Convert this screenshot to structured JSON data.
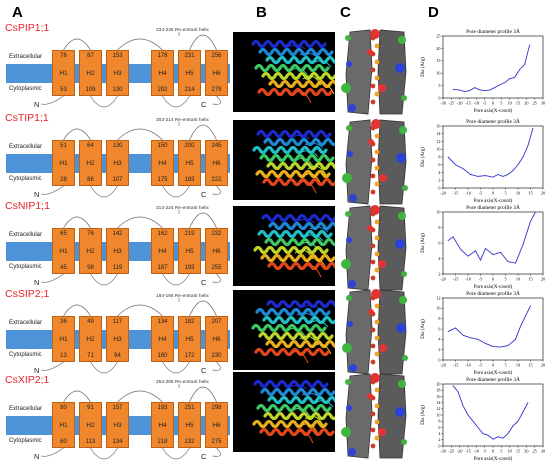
{
  "panels": {
    "a": "A",
    "b": "B",
    "c": "C",
    "d": "D"
  },
  "topology": {
    "extracellular_label": "Extracellular",
    "cytoplasmic_label": "Cytoplasmic",
    "n_label": "N",
    "c_label": "C",
    "colors": {
      "membrane": "#4c93d8",
      "helix": "#f0872d",
      "protein_name": "#e8232a"
    },
    "proteins": [
      {
        "name": "CsPIP1;1",
        "reentrant": "234-245 Re-entrant helix",
        "helices": [
          {
            "label": "H1",
            "top": "76",
            "bottom": "53"
          },
          {
            "label": "H2",
            "top": "87",
            "bottom": "109"
          },
          {
            "label": "H3",
            "top": "153",
            "bottom": "130"
          },
          {
            "label": "H4",
            "top": "178",
            "bottom": "202"
          },
          {
            "label": "H5",
            "top": "231",
            "bottom": "214"
          },
          {
            "label": "H6",
            "top": "256",
            "bottom": "279"
          }
        ]
      },
      {
        "name": "CsTIP1;1",
        "reentrant": "203-214 Re-entrant helix",
        "helices": [
          {
            "label": "H1",
            "top": "51",
            "bottom": "28"
          },
          {
            "label": "H2",
            "top": "64",
            "bottom": "86"
          },
          {
            "label": "H3",
            "top": "130",
            "bottom": "107"
          },
          {
            "label": "H4",
            "top": "150",
            "bottom": "175"
          },
          {
            "label": "H5",
            "top": "200",
            "bottom": "183"
          },
          {
            "label": "H6",
            "top": "245",
            "bottom": "222"
          }
        ]
      },
      {
        "name": "CsNIP1;1",
        "reentrant": "213-224 Re-entrant helix",
        "helices": [
          {
            "label": "H1",
            "top": "65",
            "bottom": "45"
          },
          {
            "label": "H2",
            "top": "76",
            "bottom": "98"
          },
          {
            "label": "H3",
            "top": "142",
            "bottom": "119"
          },
          {
            "label": "H4",
            "top": "162",
            "bottom": "187"
          },
          {
            "label": "H5",
            "top": "219",
            "bottom": "193"
          },
          {
            "label": "H6",
            "top": "232",
            "bottom": "255"
          }
        ]
      },
      {
        "name": "CsSIP2;1",
        "reentrant": "184-196 Re-entrant helix",
        "helices": [
          {
            "label": "H1",
            "top": "36",
            "bottom": "13"
          },
          {
            "label": "H2",
            "top": "49",
            "bottom": "71"
          },
          {
            "label": "H3",
            "top": "117",
            "bottom": "94"
          },
          {
            "label": "H4",
            "top": "134",
            "bottom": "160"
          },
          {
            "label": "H5",
            "top": "182",
            "bottom": "172"
          },
          {
            "label": "H6",
            "top": "207",
            "bottom": "230"
          }
        ]
      },
      {
        "name": "CsXIP2;1",
        "reentrant": "254-265 Re-entrant helix",
        "helices": [
          {
            "label": "H1",
            "top": "80",
            "bottom": "60"
          },
          {
            "label": "H2",
            "top": "91",
            "bottom": "113"
          },
          {
            "label": "H3",
            "top": "157",
            "bottom": "134"
          },
          {
            "label": "H4",
            "top": "193",
            "bottom": "218"
          },
          {
            "label": "H5",
            "top": "251",
            "bottom": "232"
          },
          {
            "label": "H6",
            "top": "298",
            "bottom": "275"
          }
        ]
      }
    ]
  },
  "chart_data": [
    {
      "type": "line",
      "title": "Pore diameter profile 3Å",
      "xlabel": "Pore axis(X-coord)",
      "ylabel": "Dia (Arg)",
      "xlim": [
        -30,
        30
      ],
      "ylim": [
        0,
        25
      ],
      "xticks": [
        -30,
        -25,
        -20,
        -15,
        -10,
        -5,
        0,
        5,
        10,
        15,
        20,
        25,
        30
      ],
      "yticks": [
        0,
        5,
        10,
        15,
        20,
        25
      ],
      "series": [
        {
          "color": "#3333cc",
          "x": [
            -24,
            -20,
            -17,
            -14,
            -11,
            -8,
            -5,
            -2,
            1,
            4,
            7,
            10,
            13,
            16,
            19,
            22
          ],
          "y": [
            3.5,
            3.2,
            2.6,
            3.0,
            4.2,
            3.3,
            3.0,
            3.2,
            4.2,
            5.3,
            6.2,
            7.8,
            8.3,
            11.5,
            13.5,
            21.5
          ]
        }
      ]
    },
    {
      "type": "line",
      "title": "Pore diameter profile 3Å",
      "xlabel": "Pore axis(X-coord)",
      "ylabel": "Dia (Arg)",
      "xlim": [
        -20,
        20
      ],
      "ylim": [
        0,
        16
      ],
      "xticks": [
        -20,
        -15,
        -10,
        -5,
        0,
        5,
        10,
        15,
        20
      ],
      "yticks": [
        0,
        2,
        4,
        6,
        8,
        10,
        12,
        14,
        16
      ],
      "series": [
        {
          "color": "#3333cc",
          "x": [
            -18,
            -15,
            -12,
            -9,
            -6,
            -3,
            0,
            2,
            4,
            6,
            8,
            10,
            12,
            14,
            16
          ],
          "y": [
            8,
            6,
            5,
            3.5,
            3,
            3.2,
            2.8,
            3.5,
            3,
            3.5,
            4.5,
            6,
            8,
            11,
            15.5
          ]
        }
      ]
    },
    {
      "type": "line",
      "title": "Pore diameter profile 3Å",
      "xlabel": "Pore axis(X-coord)",
      "ylabel": "Dia (Arg)",
      "xlim": [
        -20,
        20
      ],
      "ylim": [
        2,
        10
      ],
      "xticks": [
        -20,
        -15,
        -10,
        -5,
        0,
        5,
        10,
        15,
        20
      ],
      "yticks": [
        2,
        4,
        6,
        8,
        10
      ],
      "series": [
        {
          "color": "#3333cc",
          "x": [
            -18,
            -16,
            -13,
            -10,
            -7,
            -5,
            -3,
            0,
            3,
            6,
            9,
            12,
            15,
            17
          ],
          "y": [
            6.3,
            6.8,
            5.2,
            4.3,
            5.0,
            3.8,
            5.3,
            4.5,
            4.8,
            3.6,
            3.4,
            5.8,
            8.8,
            10
          ]
        }
      ]
    },
    {
      "type": "line",
      "title": "Pore diameter profile 3Å",
      "xlabel": "Pore axis(X-coord)",
      "ylabel": "Dia (Arg)",
      "xlim": [
        -20,
        20
      ],
      "ylim": [
        0,
        12
      ],
      "xticks": [
        -20,
        -15,
        -10,
        -5,
        0,
        5,
        10,
        15,
        20
      ],
      "yticks": [
        0,
        2,
        4,
        6,
        8,
        10,
        12
      ],
      "series": [
        {
          "color": "#3333cc",
          "x": [
            -18,
            -15,
            -12,
            -9,
            -6,
            -3,
            0,
            3,
            6,
            9,
            11,
            13,
            15
          ],
          "y": [
            5.5,
            6.2,
            4.8,
            4.3,
            4.0,
            3.2,
            2.6,
            2.5,
            2.8,
            4.0,
            6.5,
            8.5,
            10.5
          ]
        }
      ]
    },
    {
      "type": "line",
      "title": "Pore diameter profile 3Å",
      "xlabel": "Pore axis(X-coord)",
      "ylabel": "Dia (Arg)",
      "xlim": [
        -30,
        30
      ],
      "ylim": [
        0,
        20
      ],
      "xticks": [
        -30,
        -25,
        -20,
        -15,
        -10,
        -5,
        0,
        5,
        10,
        15,
        20,
        25,
        30
      ],
      "yticks": [
        0,
        2,
        4,
        6,
        8,
        10,
        12,
        14,
        16,
        18,
        20
      ],
      "series": [
        {
          "color": "#3333cc",
          "x": [
            -24,
            -21,
            -18,
            -15,
            -12,
            -9,
            -6,
            -3,
            0,
            3,
            6,
            9,
            12,
            15,
            18,
            21
          ],
          "y": [
            19.5,
            17.5,
            13,
            10,
            8,
            6,
            4,
            3.5,
            2.2,
            3.0,
            2.5,
            4.0,
            6.5,
            8.0,
            11,
            14
          ]
        }
      ]
    }
  ]
}
